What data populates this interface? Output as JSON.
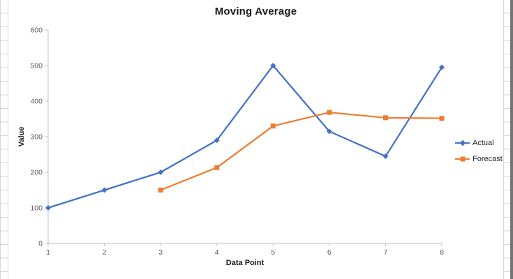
{
  "chart_data": {
    "type": "line",
    "title": "Moving Average",
    "xlabel": "Data Point",
    "ylabel": "Value",
    "categories": [
      "1",
      "2",
      "3",
      "4",
      "5",
      "6",
      "7",
      "8"
    ],
    "y_ticks": [
      0,
      100,
      200,
      300,
      400,
      500,
      600
    ],
    "ylim": [
      0,
      600
    ],
    "grid": false,
    "legend_position": "right",
    "series": [
      {
        "name": "Actual",
        "color": "#4472C4",
        "marker": "diamond",
        "values": [
          100,
          150,
          200,
          290,
          500,
          315,
          245,
          495
        ]
      },
      {
        "name": "Forecast",
        "color": "#ED7D31",
        "marker": "square",
        "values": [
          null,
          null,
          150,
          213.3,
          330,
          368.3,
          353.3,
          351.7
        ]
      }
    ]
  },
  "colors": {
    "actual_blue": "#4472C4",
    "forecast_orange": "#ED7D31",
    "axis_line": "#bfbfbf",
    "tick_label": "#595959",
    "chart_border": "#d9d9d9",
    "sheet_gridline": "#d6d6d6",
    "window_edge": "#757575"
  }
}
